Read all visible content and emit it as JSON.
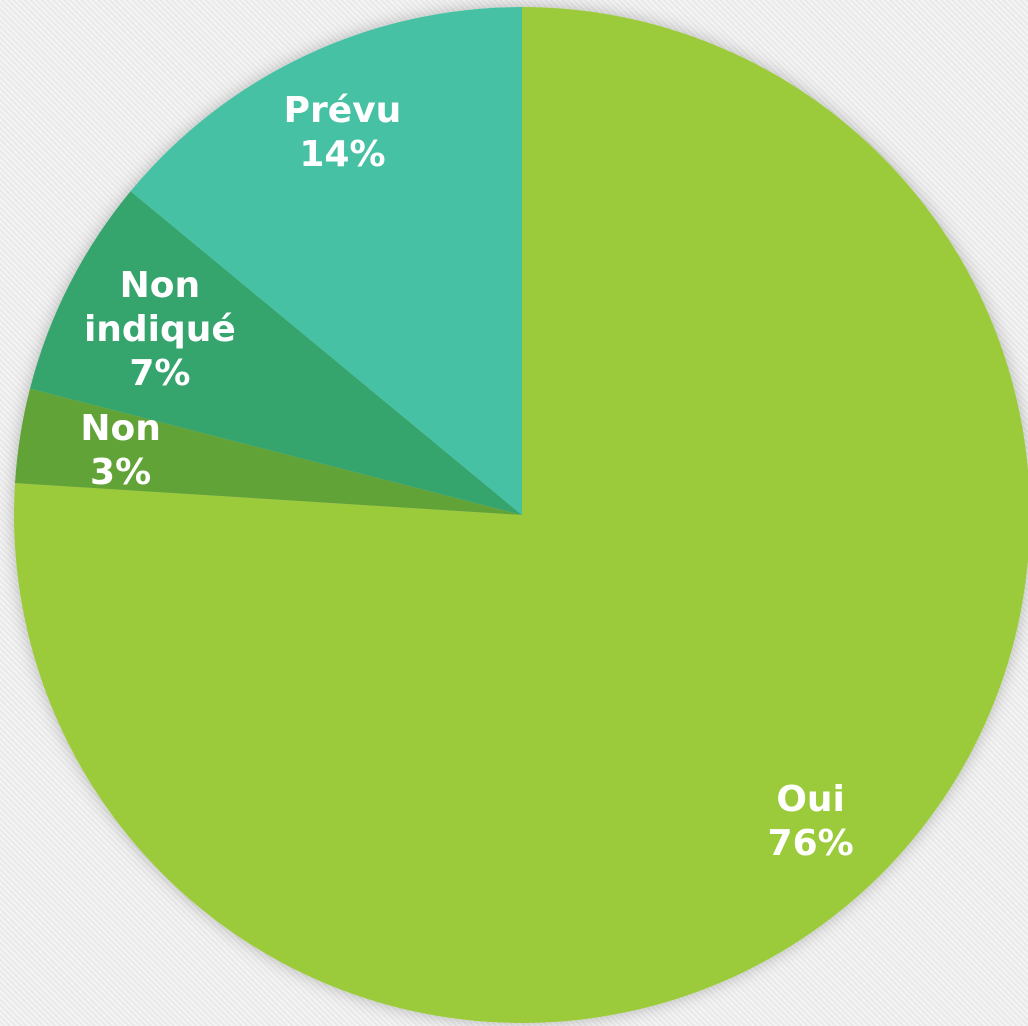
{
  "chart_data": {
    "type": "pie",
    "categories": [
      "Oui",
      "Non",
      "Non indiqué",
      "Prévu"
    ],
    "values": [
      76,
      3,
      7,
      14
    ],
    "value_labels": [
      "76%",
      "3%",
      "7%",
      "14%"
    ],
    "colors": [
      "#9bcb3b",
      "#62a339",
      "#35a56d",
      "#46c1a3"
    ]
  }
}
